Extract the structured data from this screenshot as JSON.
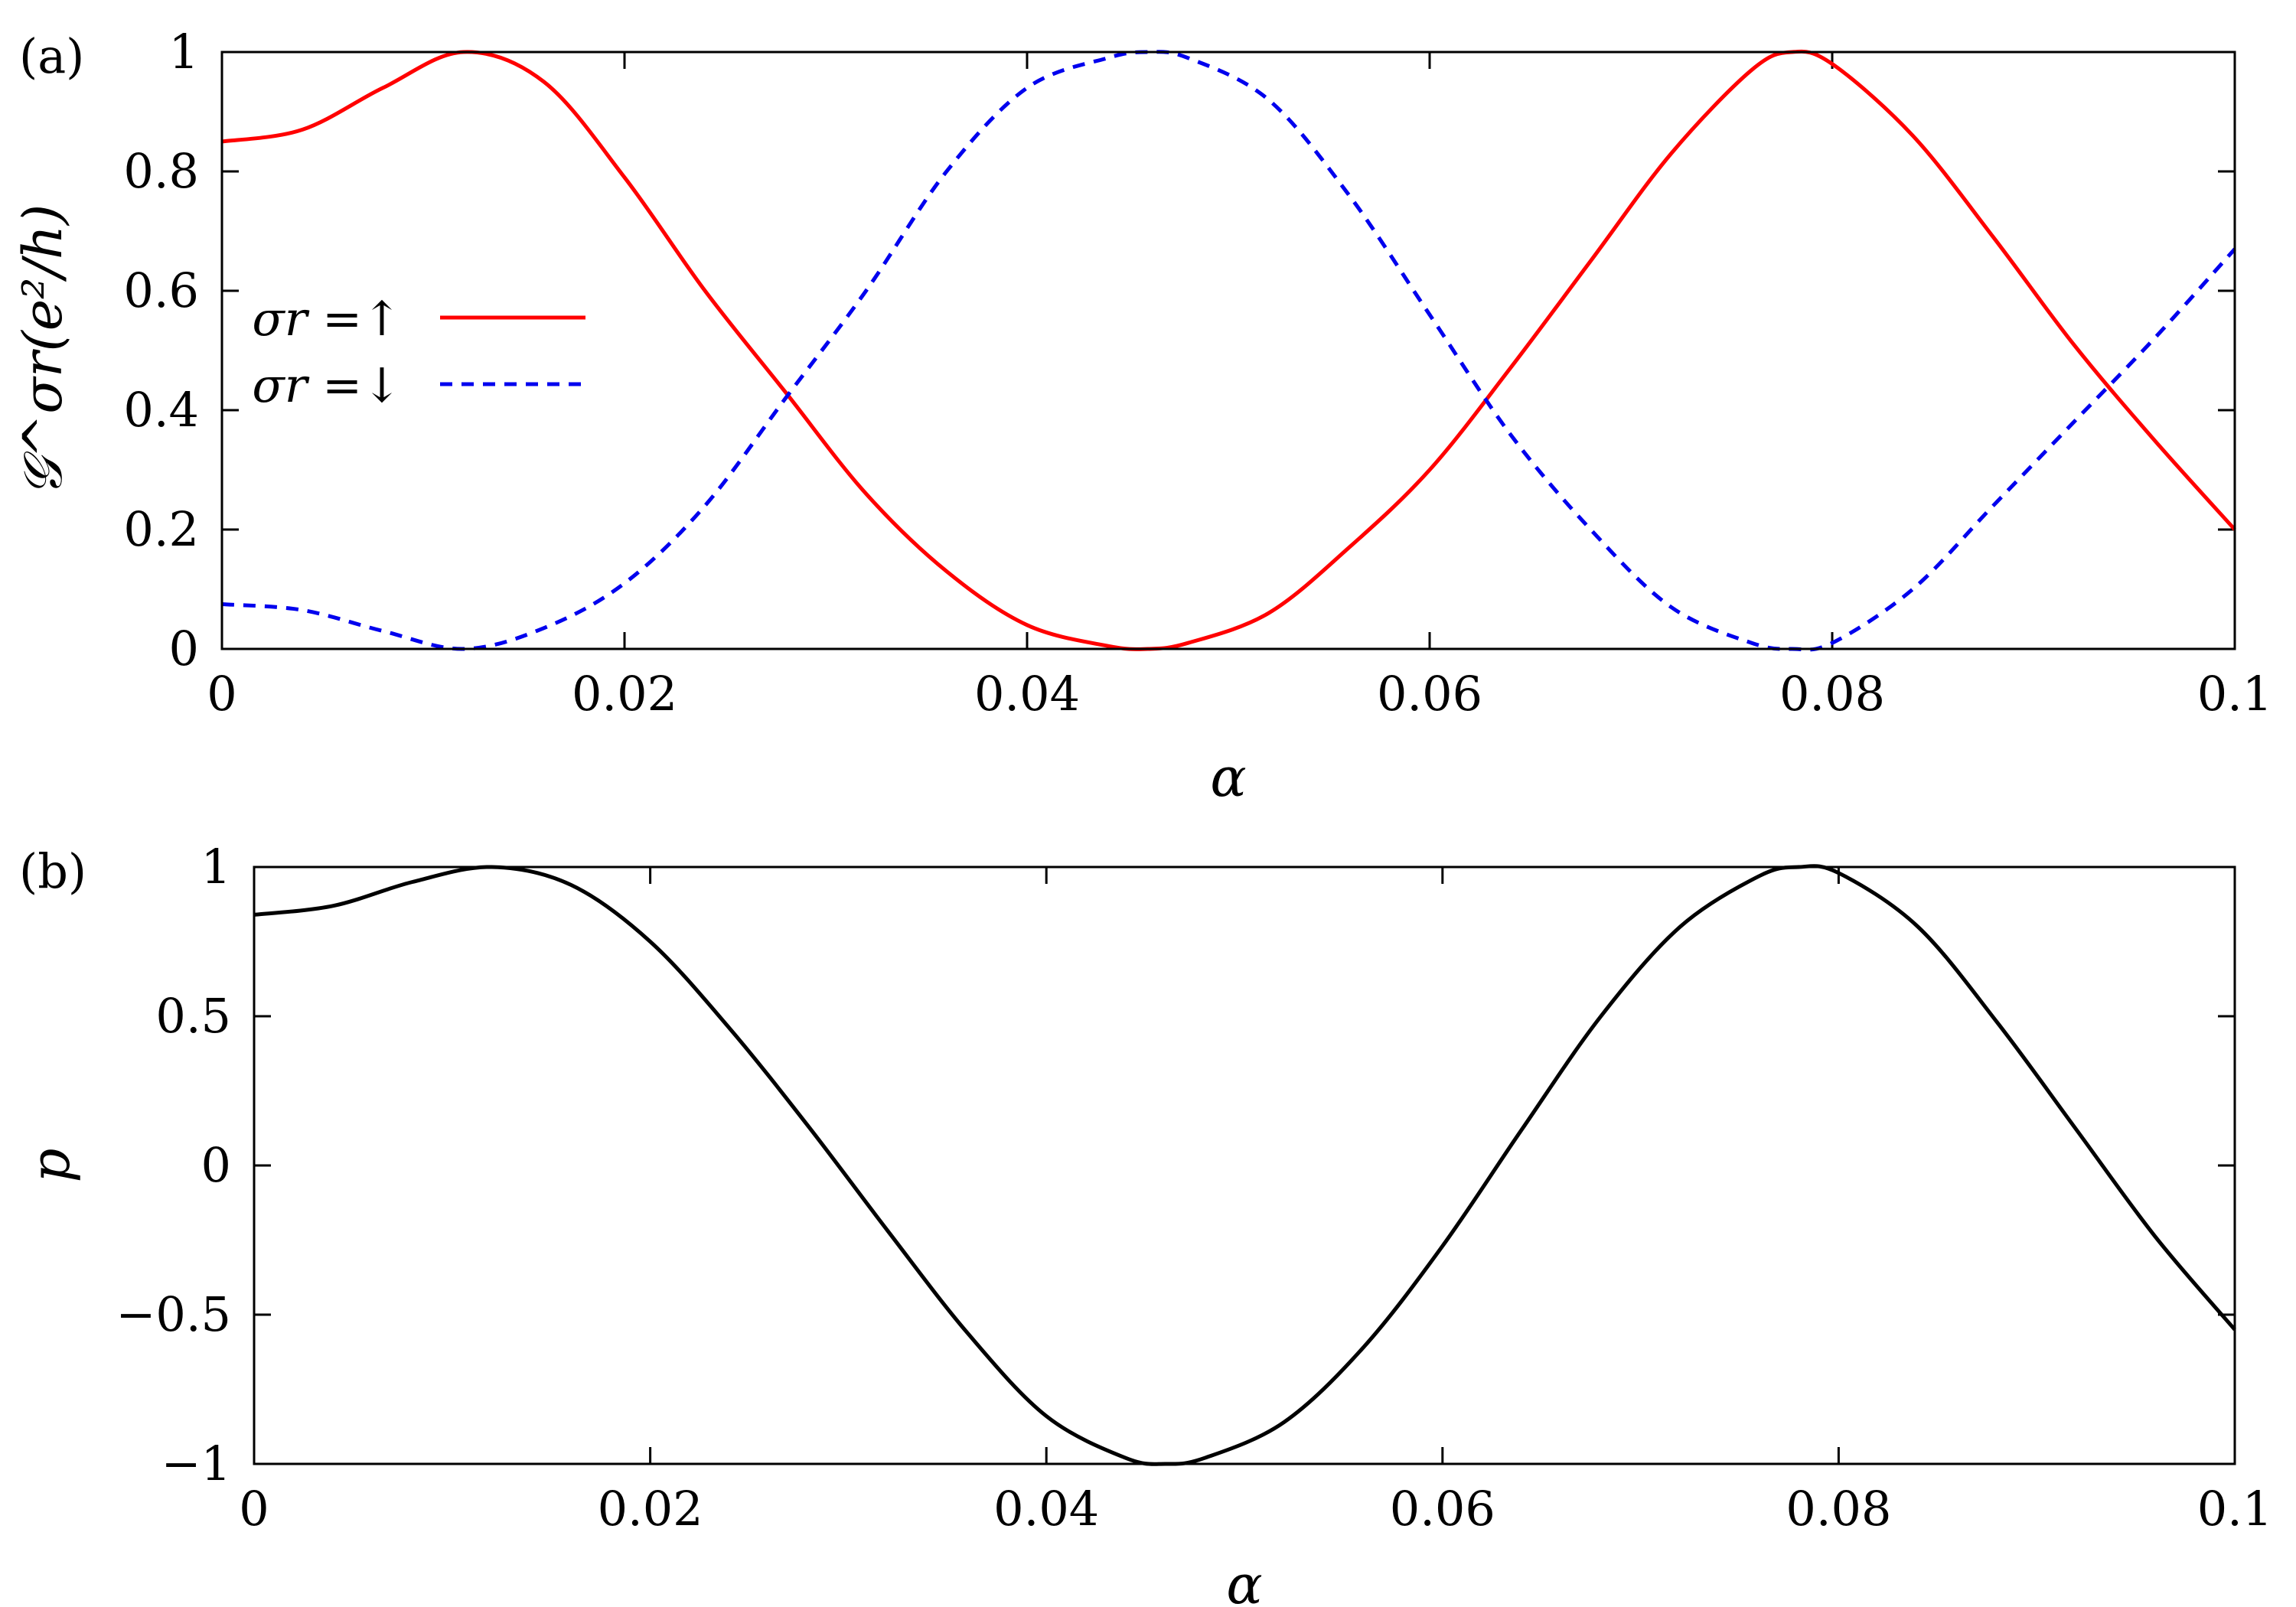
{
  "colors": {
    "up": "#ff0000",
    "down": "#0000ee",
    "p": "#000000"
  },
  "chart_data": [
    {
      "type": "line",
      "panel_label": "(a)",
      "xlabel": "α",
      "ylabel": "𝒢^σr(e²/h)",
      "xlim": [
        0,
        0.1
      ],
      "ylim": [
        0,
        1
      ],
      "xticks": [
        0,
        0.02,
        0.04,
        0.06,
        0.08,
        0.1
      ],
      "xtick_labels": [
        "0",
        "0.02",
        "0.04",
        "0.06",
        "0.08",
        "0.1"
      ],
      "yticks": [
        0,
        0.2,
        0.4,
        0.6,
        0.8,
        1
      ],
      "ytick_labels": [
        "0",
        "0.2",
        "0.4",
        "0.6",
        "0.8",
        "1"
      ],
      "legend_position": "center-left",
      "series": [
        {
          "name": "σr =↑",
          "style": "solid",
          "color": "#ff0000",
          "x": [
            0,
            0.004,
            0.008,
            0.012,
            0.016,
            0.02,
            0.024,
            0.028,
            0.032,
            0.036,
            0.04,
            0.044,
            0.046,
            0.048,
            0.052,
            0.056,
            0.06,
            0.064,
            0.068,
            0.072,
            0.076,
            0.078,
            0.08,
            0.084,
            0.088,
            0.092,
            0.096,
            0.1
          ],
          "y": [
            0.85,
            0.87,
            0.94,
            1.0,
            0.95,
            0.79,
            0.6,
            0.43,
            0.26,
            0.13,
            0.04,
            0.005,
            0.0,
            0.01,
            0.06,
            0.17,
            0.3,
            0.47,
            0.65,
            0.83,
            0.97,
            1.0,
            0.98,
            0.86,
            0.69,
            0.51,
            0.35,
            0.2
          ]
        },
        {
          "name": "σr =↓",
          "style": "dashed",
          "color": "#0000ee",
          "x": [
            0,
            0.004,
            0.008,
            0.012,
            0.016,
            0.02,
            0.024,
            0.028,
            0.032,
            0.036,
            0.04,
            0.044,
            0.046,
            0.048,
            0.052,
            0.056,
            0.06,
            0.064,
            0.068,
            0.072,
            0.076,
            0.078,
            0.08,
            0.084,
            0.088,
            0.092,
            0.096,
            0.1
          ],
          "y": [
            0.075,
            0.065,
            0.03,
            0.0,
            0.035,
            0.11,
            0.24,
            0.42,
            0.6,
            0.8,
            0.94,
            0.99,
            1.0,
            0.99,
            0.92,
            0.76,
            0.56,
            0.36,
            0.2,
            0.07,
            0.01,
            0.0,
            0.01,
            0.1,
            0.24,
            0.38,
            0.52,
            0.67
          ]
        }
      ]
    },
    {
      "type": "line",
      "panel_label": "(b)",
      "xlabel": "α",
      "ylabel": "p",
      "xlim": [
        0,
        0.1
      ],
      "ylim": [
        -1,
        1
      ],
      "xticks": [
        0,
        0.02,
        0.04,
        0.06,
        0.08,
        0.1
      ],
      "xtick_labels": [
        "0",
        "0.02",
        "0.04",
        "0.06",
        "0.08",
        "0.1"
      ],
      "yticks": [
        -1,
        -0.5,
        0,
        0.5,
        1
      ],
      "ytick_labels": [
        "−1",
        "−0.5",
        "0",
        "0.5",
        "1"
      ],
      "series": [
        {
          "style": "solid",
          "color": "#000000",
          "x": [
            0,
            0.004,
            0.008,
            0.012,
            0.016,
            0.02,
            0.024,
            0.028,
            0.032,
            0.036,
            0.04,
            0.044,
            0.046,
            0.048,
            0.052,
            0.056,
            0.06,
            0.064,
            0.068,
            0.072,
            0.076,
            0.078,
            0.08,
            0.084,
            0.088,
            0.092,
            0.096,
            0.1
          ],
          "y": [
            0.84,
            0.87,
            0.95,
            1.0,
            0.94,
            0.75,
            0.46,
            0.13,
            -0.22,
            -0.56,
            -0.84,
            -0.98,
            -1.0,
            -0.98,
            -0.86,
            -0.61,
            -0.27,
            0.12,
            0.5,
            0.8,
            0.97,
            1.0,
            0.98,
            0.8,
            0.48,
            0.12,
            -0.24,
            -0.55
          ]
        }
      ]
    }
  ]
}
